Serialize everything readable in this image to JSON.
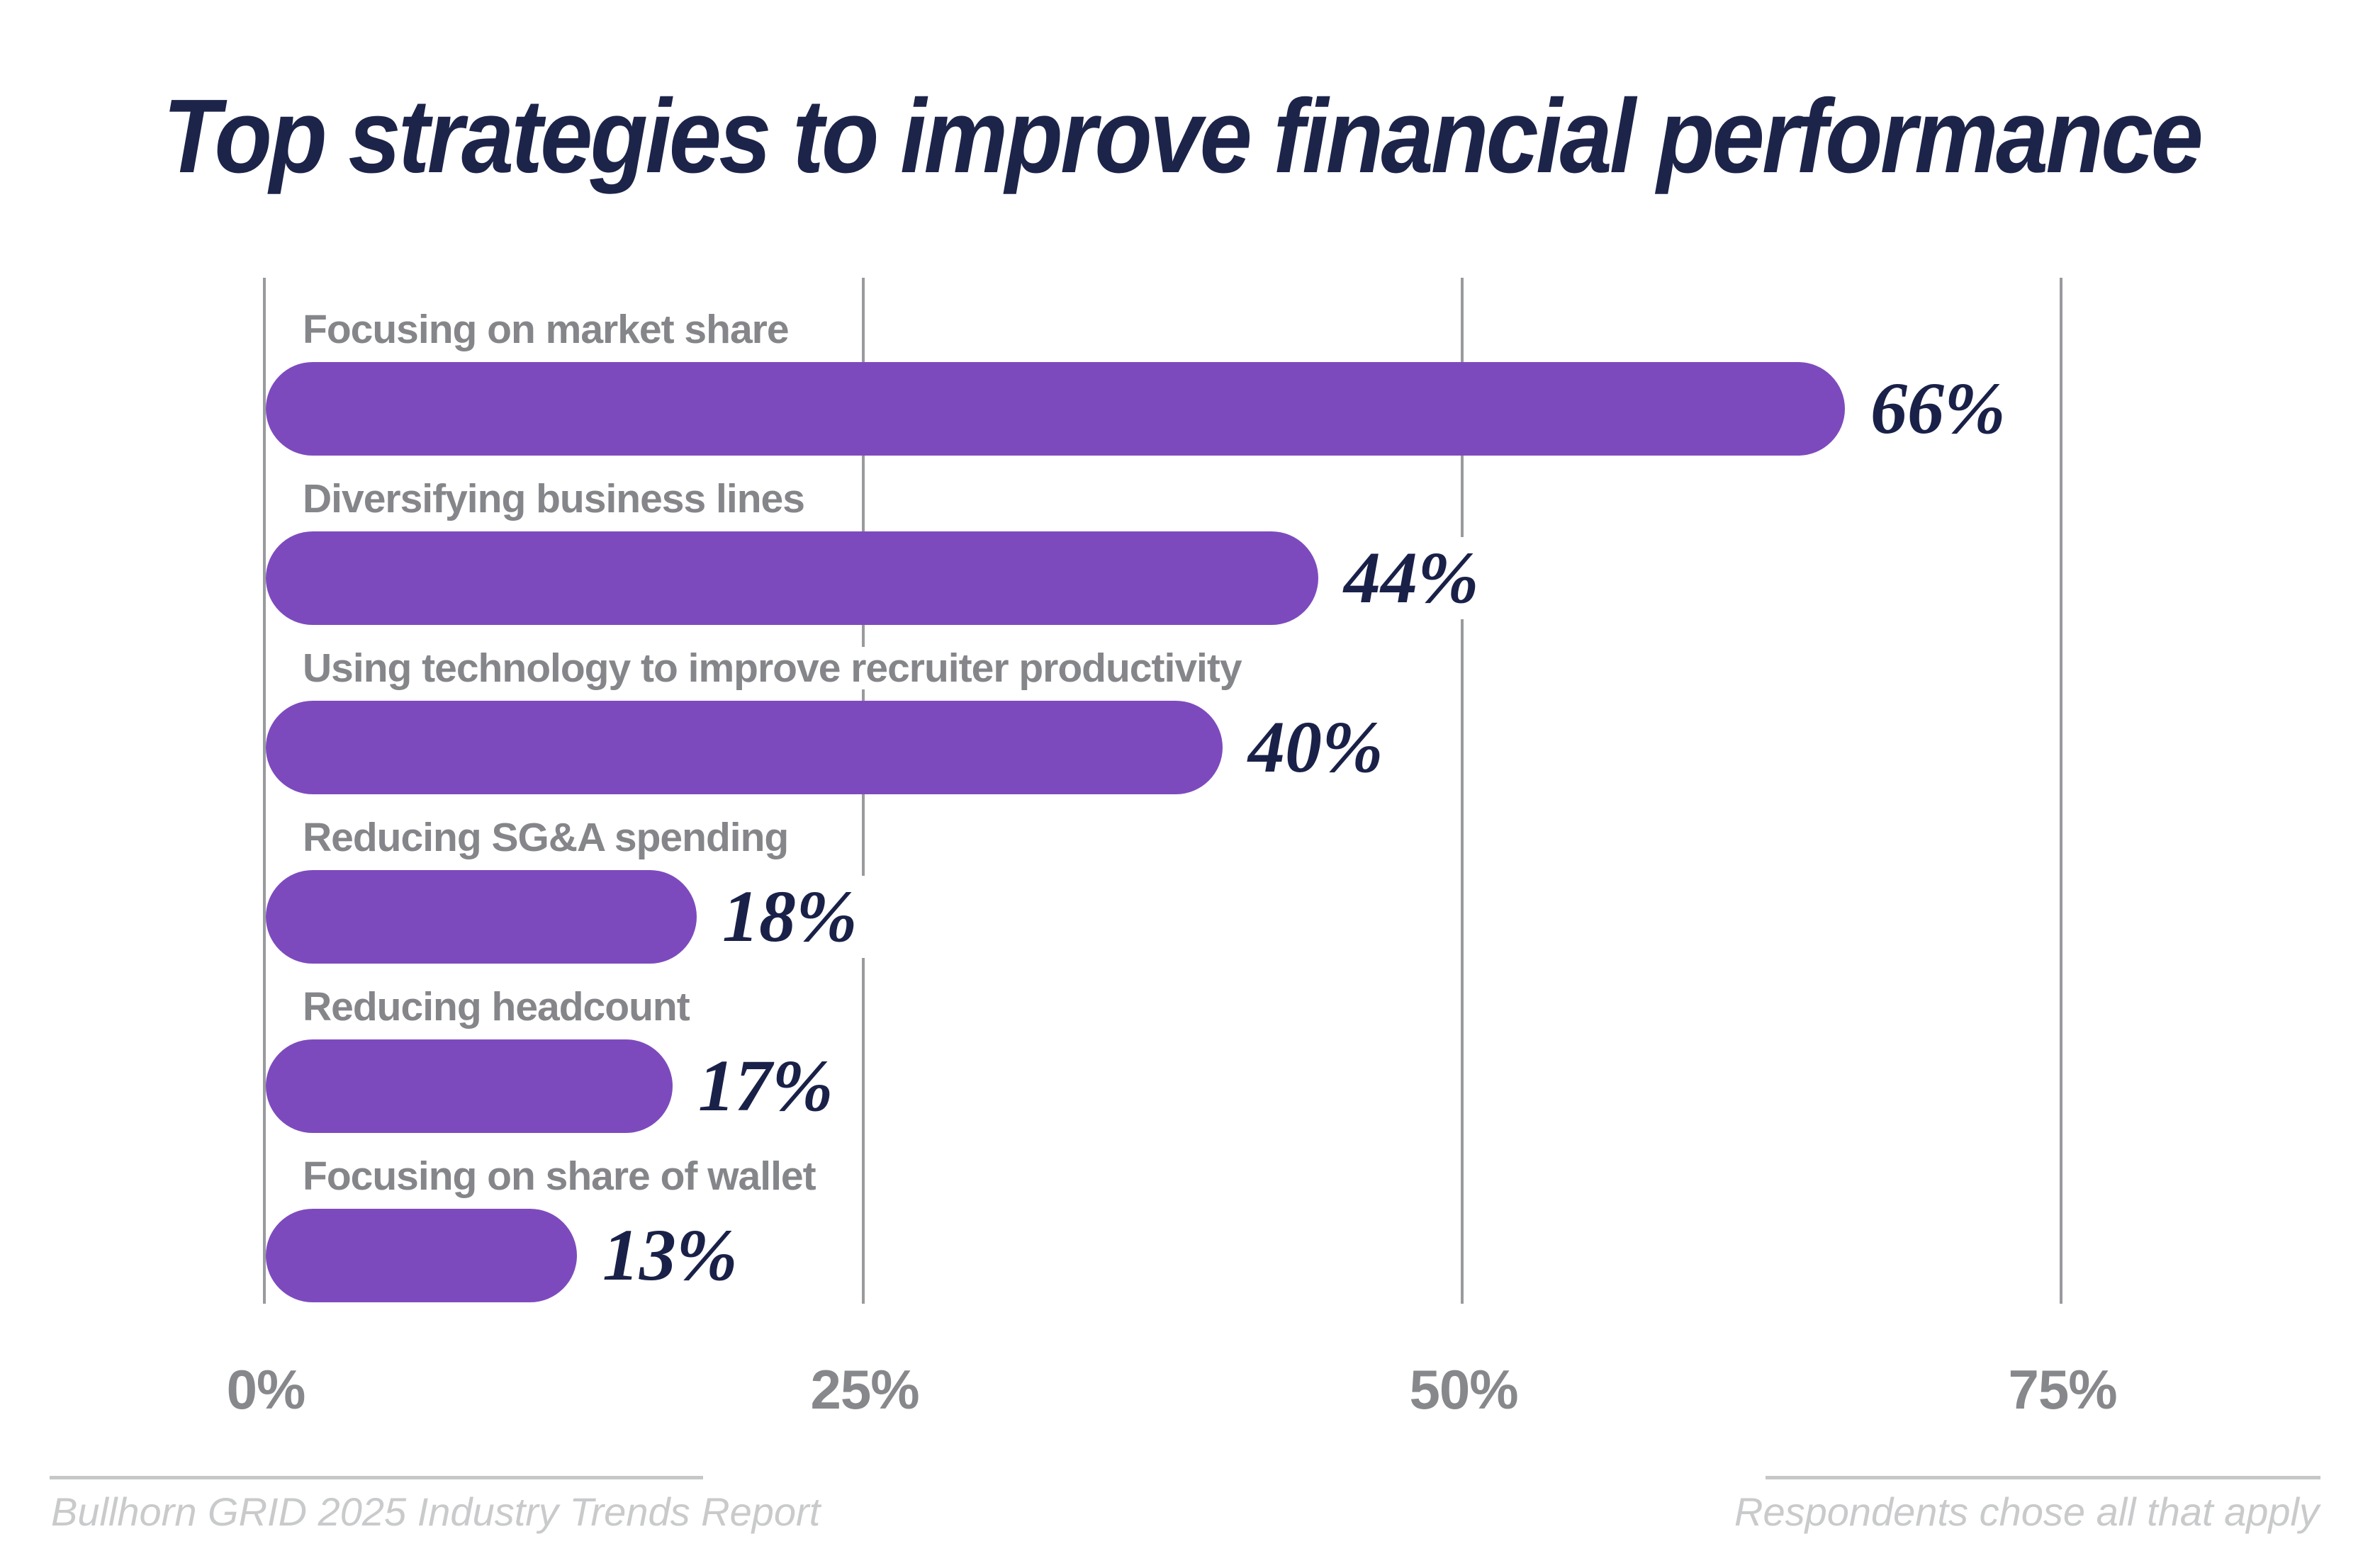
{
  "title": "Top strategies to improve financial performance",
  "chart_data": {
    "type": "bar",
    "orientation": "horizontal",
    "title": "Top strategies to improve financial performance",
    "categories": [
      "Focusing on market share",
      "Diversifying business lines",
      "Using technology to improve recruiter productivity",
      "Reducing SG&A spending",
      "Reducing headcount",
      "Focusing on share of wallet"
    ],
    "values": [
      66,
      44,
      40,
      18,
      17,
      13
    ],
    "value_labels": [
      "66%",
      "44%",
      "40%",
      "18%",
      "17%",
      "13%"
    ],
    "x_ticks": [
      "0%",
      "25%",
      "50%",
      "75%"
    ],
    "x_tick_values": [
      0,
      25,
      50,
      75
    ],
    "xlim": [
      0,
      87
    ],
    "xlabel": "",
    "ylabel": "",
    "grid": "vertical-gridlines-on",
    "legend": "none",
    "colors": {
      "bar": "#7d4abe",
      "value_text": "#1a2148",
      "category_label": "#85868a",
      "tick_label": "#87888b",
      "gridline": "#989a9e",
      "title_text": "#1d2449",
      "footer_text": "#c9cacb",
      "background": "#ffffff"
    }
  },
  "footer": {
    "left": "Bullhorn GRID 2025 Industry Trends Report",
    "right": "Respondents chose all that apply"
  }
}
